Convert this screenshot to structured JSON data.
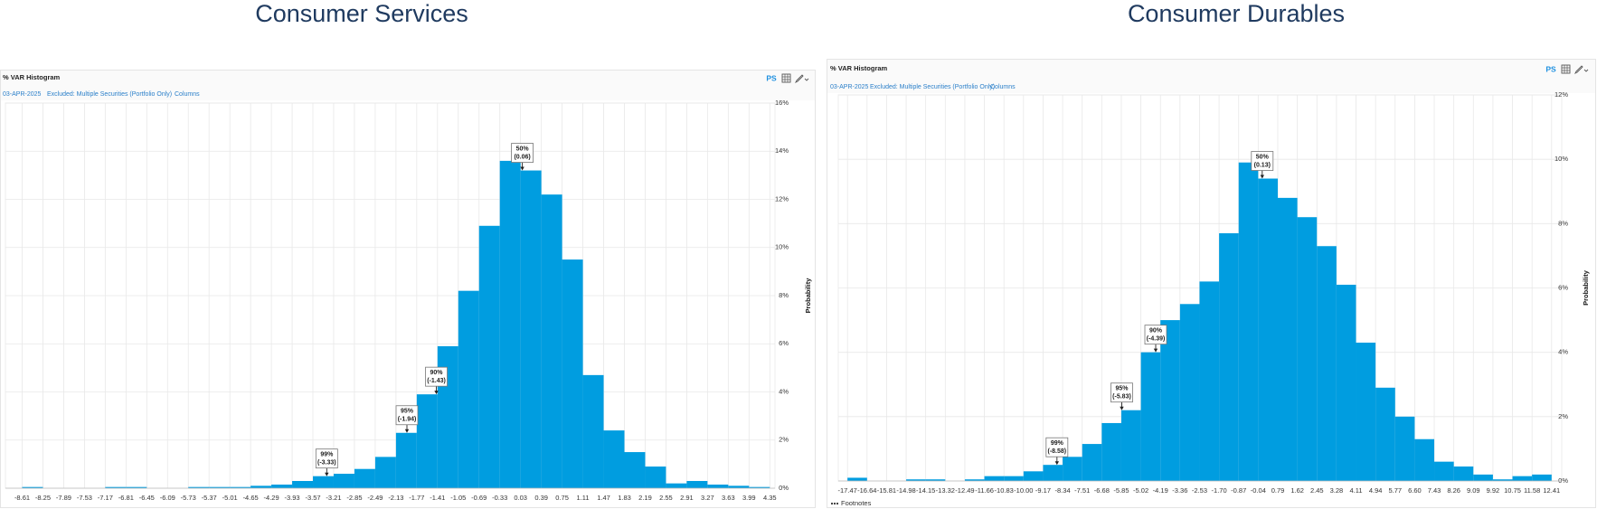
{
  "chart_data": [
    {
      "type": "histogram",
      "title": "Consumer Services",
      "panel_title": "% VAR Histogram",
      "date": "03-APR-2025",
      "filter": "Excluded: Multiple Securities (Portfolio Only)",
      "columns_link": "Columns",
      "badge": "PS",
      "ylabel": "Probability",
      "color": "#009de0",
      "grid": true,
      "bins": [
        -8.61,
        -8.25,
        -7.89,
        -7.53,
        -7.17,
        -6.81,
        -6.45,
        -6.09,
        -5.73,
        -5.37,
        -5.01,
        -4.65,
        -4.29,
        -3.93,
        -3.57,
        -3.21,
        -2.85,
        -2.49,
        -2.13,
        -1.77,
        -1.41,
        -1.05,
        -0.69,
        -0.33,
        0.03,
        0.39,
        0.75,
        1.11,
        1.47,
        1.83,
        2.19,
        2.55,
        2.91,
        3.27,
        3.63,
        3.99,
        4.35
      ],
      "values": [
        0.05,
        0,
        0,
        0,
        0.05,
        0.05,
        0,
        0,
        0.05,
        0.05,
        0.05,
        0.1,
        0.15,
        0.3,
        0.5,
        0.6,
        0.8,
        1.3,
        2.3,
        3.9,
        5.9,
        8.2,
        10.9,
        13.6,
        13.2,
        12.2,
        9.5,
        4.7,
        2.4,
        1.5,
        0.9,
        0.2,
        0.3,
        0.15,
        0.1,
        0.05
      ],
      "xlim": [
        -8.9,
        4.44
      ],
      "ylim": [
        0,
        16
      ],
      "yticks": [
        {
          "value": 0,
          "label": "0%"
        },
        {
          "value": 2,
          "label": "2%"
        },
        {
          "value": 4,
          "label": "4%"
        },
        {
          "value": 6,
          "label": "6%"
        },
        {
          "value": 8,
          "label": "8%"
        },
        {
          "value": 10,
          "label": "10%"
        },
        {
          "value": 12,
          "label": "12%"
        },
        {
          "value": 14,
          "label": "14%"
        },
        {
          "value": 16,
          "label": "16%"
        }
      ],
      "annotations": [
        {
          "label": "50%",
          "at": {
            "value": 0.06,
            "label": "(0.06)"
          }
        },
        {
          "label": "90%",
          "at": {
            "value": -1.43,
            "label": "(-1.43)"
          }
        },
        {
          "label": "95%",
          "at": {
            "value": -1.94,
            "label": "(-1.94)"
          }
        },
        {
          "label": "99%",
          "at": {
            "value": -3.33,
            "label": "(-3.33)"
          }
        }
      ]
    },
    {
      "type": "histogram",
      "title": "Consumer Durables",
      "panel_title": "% VAR Histogram",
      "date": "03-APR-2025",
      "filter": "Excluded: Multiple Securities (Portfolio Only)",
      "columns_link": "Columns",
      "badge": "PS",
      "ylabel": "Probability",
      "footnotes": "Footnotes",
      "color": "#009de0",
      "grid": true,
      "bins": [
        -17.47,
        -16.64,
        -15.81,
        -14.98,
        -14.15,
        -13.32,
        -12.49,
        -11.66,
        -10.83,
        {
          "value": -10,
          "label": "-10.00"
        },
        -9.17,
        -8.34,
        -7.51,
        -6.68,
        -5.85,
        -5.02,
        -4.19,
        -3.36,
        -2.53,
        {
          "value": -1.7,
          "label": "-1.70"
        },
        -0.87,
        -0.04,
        0.79,
        1.62,
        2.45,
        3.28,
        4.11,
        4.94,
        5.77,
        {
          "value": 6.6,
          "label": "6.60"
        },
        7.43,
        8.26,
        9.09,
        9.92,
        10.75,
        11.58,
        12.41
      ],
      "values": [
        0.1,
        0,
        0,
        0.05,
        0.05,
        0,
        0.05,
        0.15,
        0.15,
        0.3,
        0.5,
        0.75,
        1.15,
        1.8,
        2.2,
        4.0,
        5.0,
        5.5,
        6.2,
        7.7,
        9.9,
        9.4,
        8.8,
        8.2,
        7.3,
        6.1,
        4.3,
        2.9,
        2.0,
        1.3,
        0.6,
        0.45,
        0.2,
        0.05,
        0.15,
        0.2
      ],
      "xlim": [
        -17.86,
        12.84
      ],
      "ylim": [
        0,
        12
      ],
      "yticks": [
        {
          "value": 0,
          "label": "0%"
        },
        {
          "value": 2,
          "label": "2%"
        },
        {
          "value": 4,
          "label": "4%"
        },
        {
          "value": 6,
          "label": "6%"
        },
        {
          "value": 8,
          "label": "8%"
        },
        {
          "value": 10,
          "label": "10%"
        },
        {
          "value": 12,
          "label": "12%"
        }
      ],
      "annotations": [
        {
          "label": "50%",
          "at": {
            "value": 0.13,
            "label": "(0.13)"
          }
        },
        {
          "label": "90%",
          "at": {
            "value": -4.39,
            "label": "(-4.39)"
          }
        },
        {
          "label": "95%",
          "at": {
            "value": -5.83,
            "label": "(-5.83)"
          }
        },
        {
          "label": "99%",
          "at": {
            "value": -8.58,
            "label": "(-8.58)"
          }
        }
      ]
    }
  ]
}
